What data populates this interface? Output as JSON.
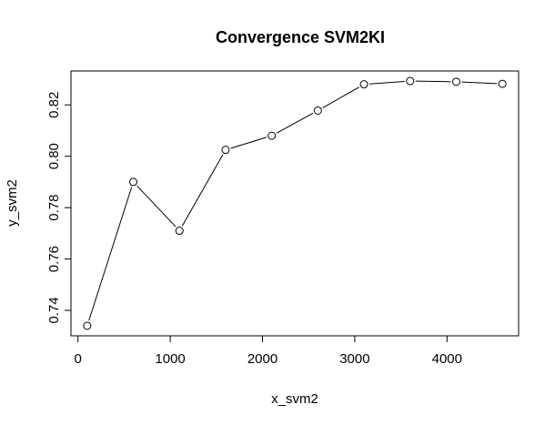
{
  "chart_data": {
    "type": "line",
    "title": "Convergence SVM2KI",
    "xlabel": "x_svm2",
    "ylabel": "y_svm2",
    "x": [
      100,
      600,
      1100,
      1600,
      2100,
      2600,
      3100,
      3600,
      4100,
      4600
    ],
    "y": [
      0.734,
      0.79,
      0.771,
      0.8025,
      0.808,
      0.8178,
      0.828,
      0.8293,
      0.829,
      0.8282
    ],
    "xticks": [
      0,
      1000,
      2000,
      3000,
      4000
    ],
    "xtick_labels": [
      "0",
      "1000",
      "2000",
      "3000",
      "4000"
    ],
    "yticks": [
      0.74,
      0.76,
      0.78,
      0.8,
      0.82
    ],
    "ytick_labels": [
      "0.74",
      "0.76",
      "0.78",
      "0.80",
      "0.82"
    ],
    "xlim": [
      -76,
      4776
    ],
    "ylim": [
      0.7301,
      0.8332
    ],
    "markers": "open-circle",
    "grid": false,
    "line_color": "#000000"
  }
}
